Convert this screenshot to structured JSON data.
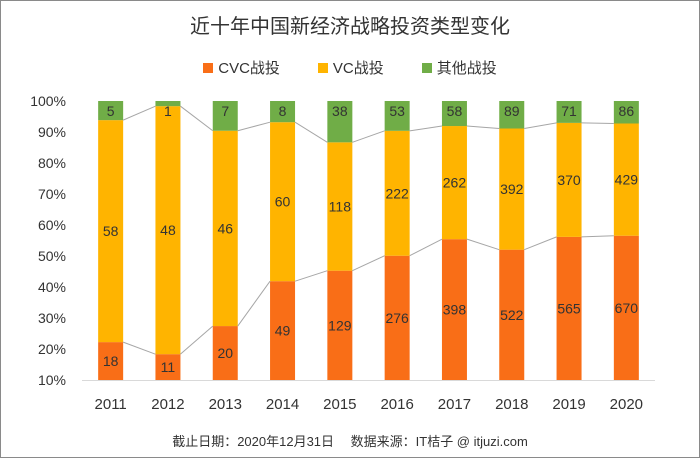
{
  "chart_data": {
    "type": "bar",
    "stacked": "percent",
    "title": "近十年中国新经济战略投资类型变化",
    "categories": [
      "2011",
      "2012",
      "2013",
      "2014",
      "2015",
      "2016",
      "2017",
      "2018",
      "2019",
      "2020"
    ],
    "series": [
      {
        "name": "CVC战投",
        "color": "#F96E17",
        "values": [
          18,
          11,
          20,
          49,
          129,
          276,
          398,
          522,
          565,
          670
        ]
      },
      {
        "name": "VC战投",
        "color": "#FFB400",
        "values": [
          58,
          48,
          46,
          60,
          118,
          222,
          262,
          392,
          370,
          429
        ]
      },
      {
        "name": "其他战投",
        "color": "#70AD47",
        "values": [
          5,
          1,
          7,
          8,
          38,
          53,
          58,
          89,
          71,
          86
        ]
      }
    ],
    "y_ticks": [
      "10%",
      "20%",
      "30%",
      "40%",
      "50%",
      "60%",
      "70%",
      "80%",
      "90%",
      "100%"
    ],
    "ylim": [
      10,
      100
    ],
    "grid": false,
    "series_lines": true,
    "legend": "top"
  },
  "footer": "截止日期：2020年12月31日　 数据来源：IT桔子 @ itjuzi.com"
}
